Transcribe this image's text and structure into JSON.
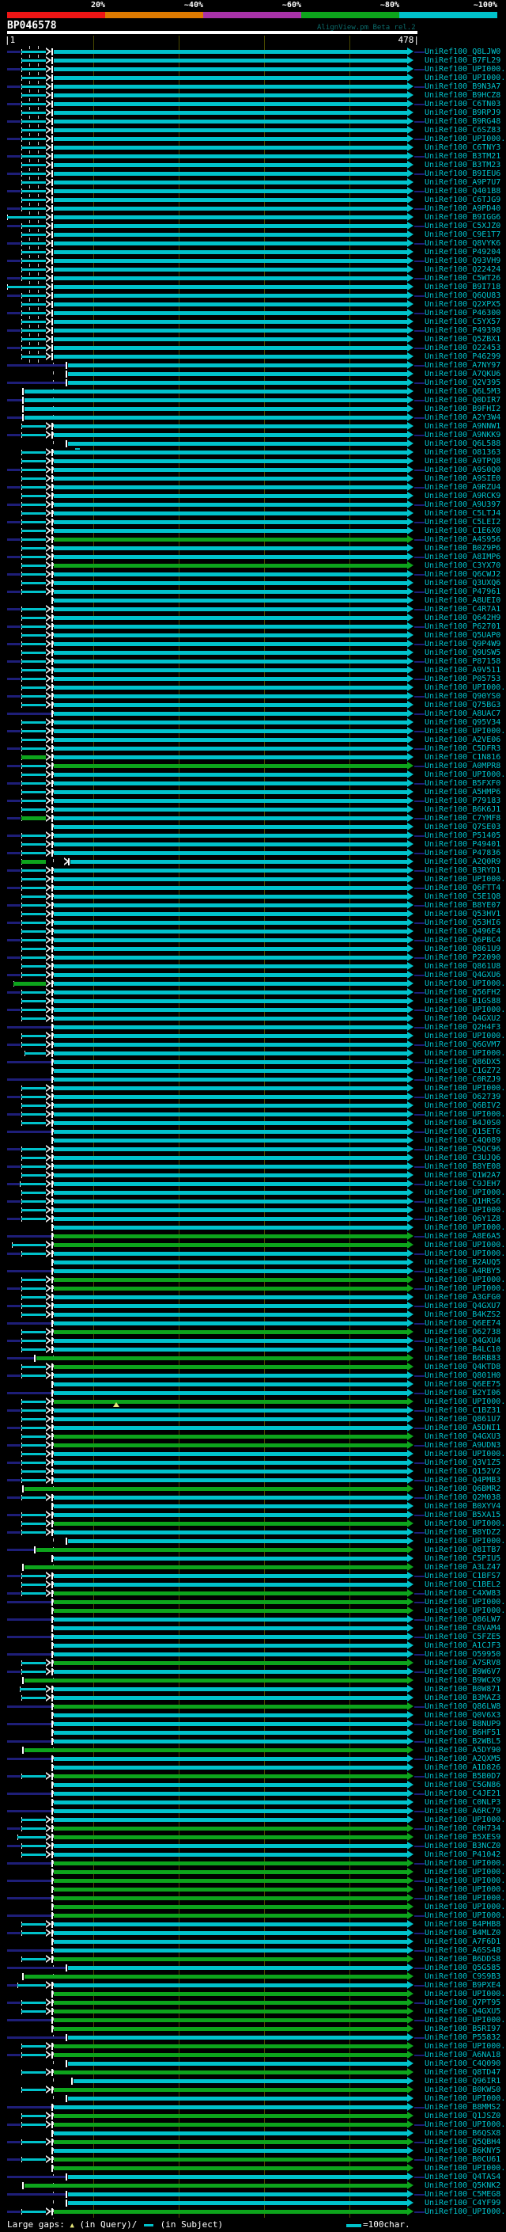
{
  "app": {
    "query_id": "BP046578",
    "title": "AlignView.pm Beta rel.2"
  },
  "scale": {
    "start_label": "|1",
    "end_label": "478|"
  },
  "legend": {
    "prefix": "Large gaps:",
    "query_symbol": "▲",
    "query_text": "(in Query)/",
    "subject_text": "(in Subject)",
    "unit_text": "=100char."
  },
  "colors": {
    "cyan": "#00c2cb",
    "green": "#0da41c",
    "navy": "#1e1e78",
    "grid": "#4a4a00",
    "gap_yellow": "#e6e67a",
    "title_teal": "#0b6b6b",
    "white": "#ffffff"
  },
  "chart_data": {
    "type": "alignment_map",
    "title": "BP046578",
    "query_length": 478,
    "x_axis": {
      "start": 1,
      "end": 478,
      "tick_interval": 100
    },
    "identity_key": {
      "meaning": "percent identity bins",
      "labels": [
        "20%",
        "~40%",
        "~60%",
        "~80%",
        "~100%"
      ],
      "colors": [
        "#ee1515",
        "#dd7a00",
        "#a832a8",
        "#0da41c",
        "#00c2cb"
      ]
    },
    "hits": [
      {
        "l": "Q8LJW0",
        "p": "A",
        "n": 1
      },
      {
        "l": "B7FL29",
        "p": "A"
      },
      {
        "l": "UPI000..",
        "p": "A",
        "n": 1
      },
      {
        "l": "UPI000..",
        "p": "A"
      },
      {
        "l": "B9N3A7",
        "p": "A",
        "n": 1
      },
      {
        "l": "B9HCZ8",
        "p": "A"
      },
      {
        "l": "C6TN03",
        "p": "A",
        "n": 1
      },
      {
        "l": "B9RPJ9",
        "p": "A"
      },
      {
        "l": "B9RG48",
        "p": "A",
        "n": 1
      },
      {
        "l": "C6SZ83",
        "p": "A"
      },
      {
        "l": "UPI000..",
        "p": "A",
        "n": 1
      },
      {
        "l": "C6TNY3",
        "p": "A"
      },
      {
        "l": "B3TM21",
        "p": "A",
        "n": 1
      },
      {
        "l": "B3TM23",
        "p": "A"
      },
      {
        "l": "B9IEU6",
        "p": "A",
        "n": 1
      },
      {
        "l": "A9P7U7",
        "p": "A"
      },
      {
        "l": "Q401B8",
        "p": "A",
        "n": 1
      },
      {
        "l": "C6TJG9",
        "p": "A"
      },
      {
        "l": "A9PD40",
        "p": "A",
        "n": 1
      },
      {
        "l": "B9IGG6",
        "p": "A",
        "t": 9
      },
      {
        "l": "C5XJZ0",
        "p": "A",
        "n": 1
      },
      {
        "l": "C9E1T7",
        "p": "A"
      },
      {
        "l": "Q8VYK6",
        "p": "A",
        "n": 1
      },
      {
        "l": "P49204",
        "p": "A"
      },
      {
        "l": "Q93VH9",
        "p": "A",
        "n": 1
      },
      {
        "l": "Q22424",
        "p": "A"
      },
      {
        "l": "C5WT26",
        "p": "A",
        "n": 1
      },
      {
        "l": "B9I718",
        "p": "A",
        "t": 9
      },
      {
        "l": "Q6QU83",
        "p": "A",
        "n": 1
      },
      {
        "l": "Q2XPX5",
        "p": "A"
      },
      {
        "l": "P46300",
        "p": "A",
        "n": 1
      },
      {
        "l": "C5YX57",
        "p": "A"
      },
      {
        "l": "P49398",
        "p": "A",
        "n": 1
      },
      {
        "l": "Q5ZBX1",
        "p": "A"
      },
      {
        "l": "O22453",
        "p": "A",
        "n": 1
      },
      {
        "l": "P46299",
        "p": "A"
      },
      {
        "l": "A7NY97",
        "p": "B",
        "n": 2
      },
      {
        "l": "A7QKU6",
        "p": "B"
      },
      {
        "l": "Q2V395",
        "p": "B",
        "n": 2
      },
      {
        "l": "Q6L5M3",
        "p": "C"
      },
      {
        "l": "Q0DIR7",
        "p": "C",
        "n": 2
      },
      {
        "l": "B9FHI2",
        "p": "C"
      },
      {
        "l": "A2Y3W4",
        "p": "C",
        "n": 2
      },
      {
        "l": "A9NNW1",
        "p": "A"
      },
      {
        "l": "A9NKK9",
        "p": "A",
        "n": 1
      },
      {
        "l": "Q6L588",
        "p": "B"
      },
      {
        "l": "O81363",
        "p": "A",
        "m": 95
      },
      {
        "l": "A9TPQ8",
        "p": "A"
      },
      {
        "l": "A9S0Q0",
        "p": "A",
        "n": 1
      },
      {
        "l": "A9SIE0",
        "p": "A"
      },
      {
        "l": "A9RZU4",
        "p": "A",
        "n": 1
      },
      {
        "l": "A9RCK9",
        "p": "A"
      },
      {
        "l": "A9U397",
        "p": "A",
        "n": 1
      },
      {
        "l": "C5LTJ4",
        "p": "A"
      },
      {
        "l": "C5LEI2",
        "p": "A",
        "n": 1
      },
      {
        "l": "C1E6X0",
        "p": "A"
      },
      {
        "l": "A4S956",
        "p": "A",
        "n": 1,
        "c": "g"
      },
      {
        "l": "B0Z9P6",
        "p": "A"
      },
      {
        "l": "A8IMP6",
        "p": "A",
        "n": 1
      },
      {
        "l": "C3YX70",
        "p": "A",
        "c": "g"
      },
      {
        "l": "Q6CWJ2",
        "p": "A",
        "n": 1
      },
      {
        "l": "Q3UXQ6",
        "p": "A"
      },
      {
        "l": "P47961",
        "p": "A",
        "n": 1
      },
      {
        "l": "A8UEI0",
        "p": "D"
      },
      {
        "l": "C4R7A1",
        "p": "A",
        "n": 1
      },
      {
        "l": "Q642H9",
        "p": "A"
      },
      {
        "l": "P62701",
        "p": "A",
        "n": 1
      },
      {
        "l": "Q5UAP0",
        "p": "A"
      },
      {
        "l": "Q9P4W9",
        "p": "A",
        "n": 1
      },
      {
        "l": "Q9USW5",
        "p": "A"
      },
      {
        "l": "P87158",
        "p": "A",
        "n": 1
      },
      {
        "l": "A9V511",
        "p": "A"
      },
      {
        "l": "P05753",
        "p": "A",
        "n": 1
      },
      {
        "l": "UPI000..",
        "p": "A"
      },
      {
        "l": "Q90YS0",
        "p": "A",
        "n": 1
      },
      {
        "l": "Q75BG3",
        "p": "A"
      },
      {
        "l": "A8UAC7",
        "p": "D",
        "n": 2
      },
      {
        "l": "Q95V34",
        "p": "A"
      },
      {
        "l": "UPI000..",
        "p": "A",
        "n": 1
      },
      {
        "l": "A2VE06",
        "p": "A"
      },
      {
        "l": "C5DFR3",
        "p": "A",
        "n": 1
      },
      {
        "l": "C1N816",
        "p": "LG"
      },
      {
        "l": "A0MPR8",
        "p": "A",
        "n": 1,
        "c": "g"
      },
      {
        "l": "UPI000..",
        "p": "A"
      },
      {
        "l": "B5FXF0",
        "p": "A",
        "n": 1
      },
      {
        "l": "A5HMP6",
        "p": "A"
      },
      {
        "l": "P79183",
        "p": "A",
        "n": 1
      },
      {
        "l": "B6K6J1",
        "p": "A"
      },
      {
        "l": "C7YMF8",
        "p": "LG",
        "n": 1
      },
      {
        "l": "Q7SE03",
        "p": "D"
      },
      {
        "l": "P51405",
        "p": "A",
        "n": 1
      },
      {
        "l": "P49401",
        "p": "A"
      },
      {
        "l": "P47836",
        "p": "A",
        "n": 1
      },
      {
        "l": "A2Q0R9",
        "p": "LG2"
      },
      {
        "l": "B3RYD1",
        "p": "A",
        "n": 1
      },
      {
        "l": "UPI000..",
        "p": "A"
      },
      {
        "l": "Q6FTT4",
        "p": "A",
        "n": 1
      },
      {
        "l": "C5E1Q8",
        "p": "A"
      },
      {
        "l": "B8YE07",
        "p": "A",
        "n": 1
      },
      {
        "l": "Q53HV1",
        "p": "A"
      },
      {
        "l": "Q53HI6",
        "p": "A",
        "n": 1
      },
      {
        "l": "Q496E4",
        "p": "A"
      },
      {
        "l": "Q6PBC4",
        "p": "A",
        "n": 1
      },
      {
        "l": "Q861U9",
        "p": "A"
      },
      {
        "l": "P22090",
        "p": "A",
        "n": 1
      },
      {
        "l": "Q861U8",
        "p": "A"
      },
      {
        "l": "Q4GXU6",
        "p": "A",
        "n": 1
      },
      {
        "l": "UPI000..",
        "p": "LG",
        "t": 17
      },
      {
        "l": "Q56FH2",
        "p": "A",
        "n": 1
      },
      {
        "l": "B1GS88",
        "p": "A"
      },
      {
        "l": "UPI000..",
        "p": "A",
        "n": 1
      },
      {
        "l": "Q4GXU2",
        "p": "A"
      },
      {
        "l": "Q2H4F3",
        "p": "D",
        "n": 2
      },
      {
        "l": "UPI000..",
        "p": "A"
      },
      {
        "l": "Q6GVM7",
        "p": "A",
        "n": 1
      },
      {
        "l": "UPI000..",
        "p": "A",
        "t": 31
      },
      {
        "l": "Q86DX5",
        "p": "D",
        "n": 2
      },
      {
        "l": "C1GZ72",
        "p": "D"
      },
      {
        "l": "C0RZJ9",
        "p": "D",
        "n": 2
      },
      {
        "l": "UPI000..",
        "p": "A"
      },
      {
        "l": "O62739",
        "p": "A",
        "n": 1
      },
      {
        "l": "Q6BIV2",
        "p": "A"
      },
      {
        "l": "UPI000..",
        "p": "A",
        "n": 1
      },
      {
        "l": "B4J0S0",
        "p": "A"
      },
      {
        "l": "Q15ET6",
        "p": "D",
        "n": 2
      },
      {
        "l": "C4Q089",
        "p": "D"
      },
      {
        "l": "Q5QC96",
        "p": "A",
        "n": 1
      },
      {
        "l": "C3UJQ6",
        "p": "A"
      },
      {
        "l": "B8YE08",
        "p": "A",
        "n": 1
      },
      {
        "l": "Q1W2A7",
        "p": "A"
      },
      {
        "l": "C9JEH7",
        "p": "A",
        "n": 1,
        "t": 25
      },
      {
        "l": "UPI000..",
        "p": "A"
      },
      {
        "l": "Q1HRS6",
        "p": "A",
        "n": 1
      },
      {
        "l": "UPI000..",
        "p": "A"
      },
      {
        "l": "Q6Y1Z8",
        "p": "A",
        "n": 1
      },
      {
        "l": "UPI000..",
        "p": "D"
      },
      {
        "l": "A8E6A5",
        "p": "D",
        "n": 2,
        "c": "g"
      },
      {
        "l": "UPI000..",
        "p": "A",
        "t": 15,
        "c": "g"
      },
      {
        "l": "UPI000..",
        "p": "A",
        "n": 1
      },
      {
        "l": "B2AUQ5",
        "p": "D"
      },
      {
        "l": "A4RBY5",
        "p": "D",
        "n": 2
      },
      {
        "l": "UPI000..",
        "p": "A",
        "c": "g"
      },
      {
        "l": "UPI000..",
        "p": "A",
        "n": 1,
        "c": "g"
      },
      {
        "l": "A3GFG0",
        "p": "A"
      },
      {
        "l": "Q4GXU7",
        "p": "A",
        "n": 1
      },
      {
        "l": "B4KZS2",
        "p": "A"
      },
      {
        "l": "Q6EE74",
        "p": "D",
        "n": 2
      },
      {
        "l": "O62738",
        "p": "A",
        "c": "g"
      },
      {
        "l": "Q4GXU4",
        "p": "A",
        "n": 1
      },
      {
        "l": "B4LC10",
        "p": "A"
      },
      {
        "l": "B6RB83",
        "p": "C3",
        "c": "g"
      },
      {
        "l": "Q4KTD8",
        "p": "A",
        "c": "g"
      },
      {
        "l": "Q801H0",
        "p": "A",
        "n": 1
      },
      {
        "l": "Q6EE75",
        "p": "D"
      },
      {
        "l": "B2YI06",
        "p": "D",
        "n": 2
      },
      {
        "l": "UPI000..",
        "p": "A",
        "c": "g",
        "g": 147
      },
      {
        "l": "C1BZ31",
        "p": "A",
        "n": 1
      },
      {
        "l": "Q861U7",
        "p": "A"
      },
      {
        "l": "A5DNI1",
        "p": "A",
        "n": 1
      },
      {
        "l": "Q4GXU3",
        "p": "A",
        "c": "g"
      },
      {
        "l": "A9UDN3",
        "p": "A",
        "n": 1,
        "c": "g"
      },
      {
        "l": "UPI000..",
        "p": "A"
      },
      {
        "l": "Q3V1Z5",
        "p": "A",
        "n": 1
      },
      {
        "l": "Q152V2",
        "p": "A"
      },
      {
        "l": "Q4PMB3",
        "p": "A",
        "n": 1
      },
      {
        "l": "Q6BMR2",
        "p": "C",
        "c": "g"
      },
      {
        "l": "Q2M038",
        "p": "A",
        "n": 1
      },
      {
        "l": "B0XYV4",
        "p": "D"
      },
      {
        "l": "B5XA15",
        "p": "A",
        "n": 1
      },
      {
        "l": "UPI000..",
        "p": "A",
        "c": "g"
      },
      {
        "l": "B8YDZ2",
        "p": "A",
        "n": 1
      },
      {
        "l": "UPI000..",
        "p": "B"
      },
      {
        "l": "Q8ITB7",
        "p": "C3",
        "c": "g"
      },
      {
        "l": "C5PIU5",
        "p": "D"
      },
      {
        "l": "A3LZ47",
        "p": "C",
        "c": "g"
      },
      {
        "l": "C1BFS7",
        "p": "A",
        "n": 1
      },
      {
        "l": "C1BEL2",
        "p": "A"
      },
      {
        "l": "C4XW83",
        "p": "A",
        "n": 1,
        "c": "g"
      },
      {
        "l": "UPI000..",
        "p": "D",
        "n": 2,
        "c": "g"
      },
      {
        "l": "UPI000..",
        "p": "D",
        "c": "g"
      },
      {
        "l": "Q86LW7",
        "p": "D",
        "n": 2
      },
      {
        "l": "C8VAM4",
        "p": "D"
      },
      {
        "l": "C5FZE5",
        "p": "D",
        "n": 2
      },
      {
        "l": "A1CJF3",
        "p": "D"
      },
      {
        "l": "O59950",
        "p": "D",
        "n": 2
      },
      {
        "l": "A7SRV8",
        "p": "A",
        "c": "g"
      },
      {
        "l": "B9W6V7",
        "p": "A",
        "n": 1
      },
      {
        "l": "B9WCX9",
        "p": "C",
        "c": "g"
      },
      {
        "l": "B0W871",
        "p": "A",
        "t": 25
      },
      {
        "l": "B3MAZ3",
        "p": "A"
      },
      {
        "l": "Q86LW8",
        "p": "D",
        "n": 2,
        "c": "g"
      },
      {
        "l": "Q0V6X3",
        "p": "D"
      },
      {
        "l": "B8NUP9",
        "p": "D",
        "n": 2
      },
      {
        "l": "B6HF51",
        "p": "D"
      },
      {
        "l": "B2WBL5",
        "p": "D",
        "n": 2
      },
      {
        "l": "A5DY90",
        "p": "C",
        "c": "g"
      },
      {
        "l": "A2QXM5",
        "p": "D",
        "n": 2
      },
      {
        "l": "A1D826",
        "p": "D"
      },
      {
        "l": "B5B0D7",
        "p": "A",
        "n": 1,
        "c": "g"
      },
      {
        "l": "C5GN86",
        "p": "D"
      },
      {
        "l": "C4JE21",
        "p": "D",
        "n": 2
      },
      {
        "l": "C0NLP3",
        "p": "D"
      },
      {
        "l": "A6RC79",
        "p": "D",
        "n": 2
      },
      {
        "l": "UPI000..",
        "p": "A"
      },
      {
        "l": "C0H734",
        "p": "A",
        "n": 1,
        "c": "g"
      },
      {
        "l": "B5XES9",
        "p": "A",
        "t": 22,
        "c": "g"
      },
      {
        "l": "B3NCZ0",
        "p": "A",
        "n": 1
      },
      {
        "l": "P41042",
        "p": "A"
      },
      {
        "l": "UPI000..",
        "p": "D",
        "n": 2,
        "c": "g"
      },
      {
        "l": "UPI000..",
        "p": "D",
        "c": "g"
      },
      {
        "l": "UPI000..",
        "p": "D",
        "n": 2,
        "c": "g"
      },
      {
        "l": "UPI000..",
        "p": "D",
        "c": "g"
      },
      {
        "l": "UPI000..",
        "p": "D",
        "n": 2,
        "c": "g"
      },
      {
        "l": "UPI000..",
        "p": "D",
        "c": "g"
      },
      {
        "l": "UPI000..",
        "p": "D",
        "n": 2,
        "c": "g"
      },
      {
        "l": "B4PHB8",
        "p": "A"
      },
      {
        "l": "B4MLZ0",
        "p": "A",
        "n": 1
      },
      {
        "l": "A7F6D1",
        "p": "D"
      },
      {
        "l": "A6SS48",
        "p": "D",
        "n": 2
      },
      {
        "l": "B6DDS8",
        "p": "A",
        "c": "g"
      },
      {
        "l": "Q5G585",
        "p": "B",
        "n": 2
      },
      {
        "l": "C9S9B3",
        "p": "C",
        "c": "g"
      },
      {
        "l": "B9PXE4",
        "p": "A",
        "t": 22,
        "n": 1
      },
      {
        "l": "UPI000..",
        "p": "D",
        "c": "g"
      },
      {
        "l": "Q7PT95",
        "p": "A",
        "n": 1,
        "c": "g"
      },
      {
        "l": "Q4GXU5",
        "p": "A",
        "c": "g"
      },
      {
        "l": "UPI000..",
        "p": "D",
        "n": 2,
        "c": "g"
      },
      {
        "l": "B5RI97",
        "p": "D",
        "c": "g"
      },
      {
        "l": "P55832",
        "p": "B",
        "n": 2
      },
      {
        "l": "UPI000..",
        "p": "A",
        "c": "g"
      },
      {
        "l": "A6NA18",
        "p": "A",
        "n": 1,
        "c": "g"
      },
      {
        "l": "C4Q090",
        "p": "B"
      },
      {
        "l": "Q8TD47",
        "p": "A",
        "c": "g"
      },
      {
        "l": "Q96IR1",
        "p": "B",
        "b": 93
      },
      {
        "l": "B0KWS0",
        "p": "A",
        "c": "g"
      },
      {
        "l": "UPI000..",
        "p": "B"
      },
      {
        "l": "B8MMS2",
        "p": "D",
        "n": 2
      },
      {
        "l": "Q1JSZ0",
        "p": "A",
        "c": "g"
      },
      {
        "l": "UPI000..",
        "p": "A",
        "n": 1,
        "c": "g"
      },
      {
        "l": "B6QSX8",
        "p": "D"
      },
      {
        "l": "Q5QBH4",
        "p": "A",
        "n": 1,
        "c": "g"
      },
      {
        "l": "B6KNY5",
        "p": "D"
      },
      {
        "l": "B0CU61",
        "p": "A",
        "n": 1,
        "c": "g"
      },
      {
        "l": "UPI000..",
        "p": "D",
        "c": "g"
      },
      {
        "l": "Q4TAS4",
        "p": "B",
        "n": 2
      },
      {
        "l": "Q5KNK2",
        "p": "C",
        "c": "g"
      },
      {
        "l": "C5MEG8",
        "p": "B",
        "n": 2
      },
      {
        "l": "C4YF99",
        "p": "B"
      },
      {
        "l": "UPI000..",
        "p": "A",
        "n": 1,
        "c": "g"
      }
    ]
  }
}
